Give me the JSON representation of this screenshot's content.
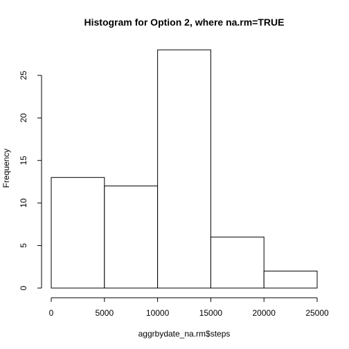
{
  "chart_data": {
    "type": "bar",
    "title": "Histogram for Option 2, where na.rm=TRUE",
    "xlabel": "aggrbydate_na.rm$steps",
    "ylabel": "Frequency",
    "bins": [
      {
        "from": 0,
        "to": 5000,
        "count": 13
      },
      {
        "from": 5000,
        "to": 10000,
        "count": 12
      },
      {
        "from": 10000,
        "to": 15000,
        "count": 28
      },
      {
        "from": 15000,
        "to": 20000,
        "count": 6
      },
      {
        "from": 20000,
        "to": 25000,
        "count": 2
      }
    ],
    "xlim": [
      0,
      25000
    ],
    "ylim": [
      0,
      28
    ],
    "x_ticks": [
      0,
      5000,
      10000,
      15000,
      20000,
      25000
    ],
    "y_ticks": [
      0,
      5,
      10,
      15,
      20,
      25
    ],
    "grid": false,
    "bar_fill": "#ffffff",
    "bar_stroke": "#000000"
  }
}
